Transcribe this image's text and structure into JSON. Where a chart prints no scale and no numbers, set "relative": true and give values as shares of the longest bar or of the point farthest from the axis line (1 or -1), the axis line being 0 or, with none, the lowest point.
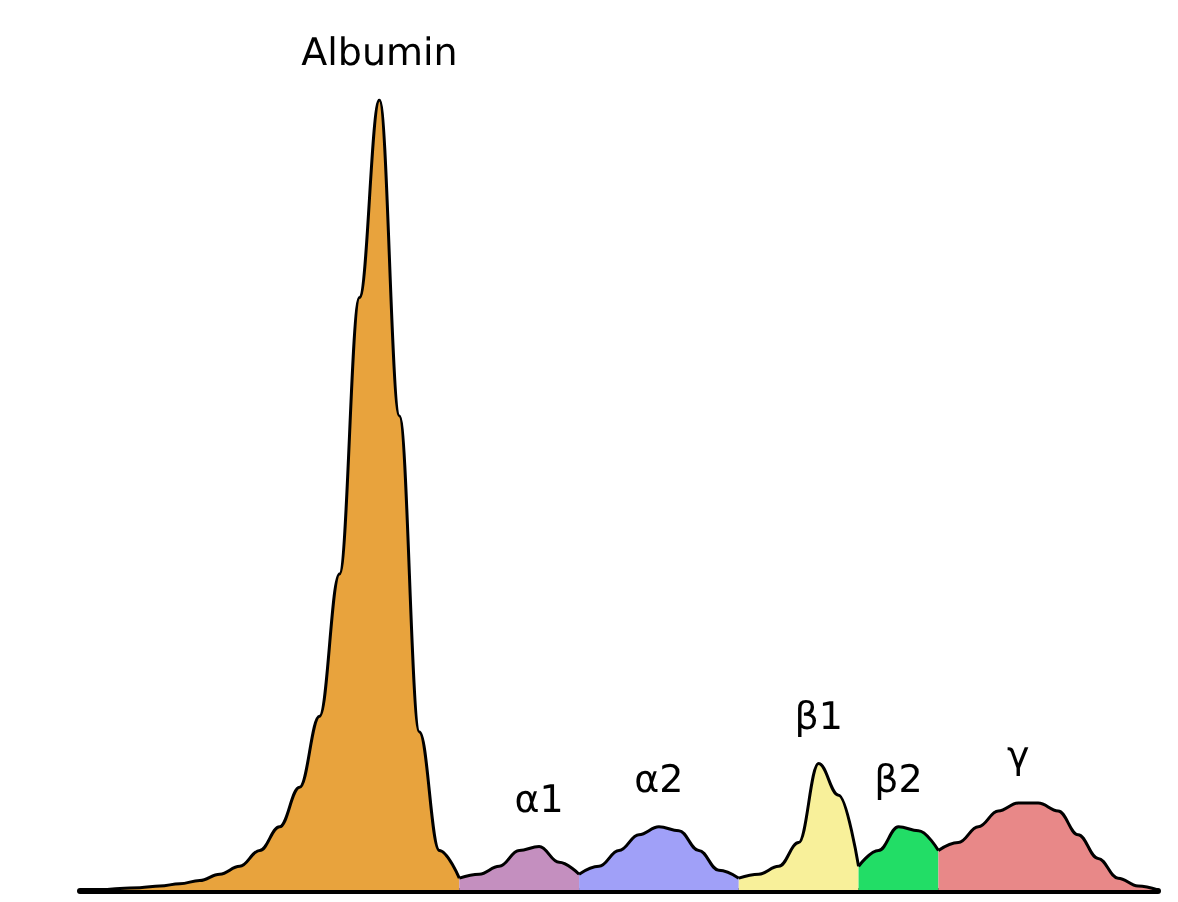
{
  "chart_data": {
    "type": "area",
    "relative": true,
    "categories": [
      null,
      null,
      null,
      null,
      null,
      null,
      null,
      null,
      null,
      null,
      null,
      null,
      null,
      null,
      null,
      null,
      null,
      null,
      null,
      null,
      null,
      null,
      null,
      null,
      null,
      null,
      null,
      null,
      null,
      null,
      null,
      null,
      null,
      null,
      null,
      null,
      null,
      null,
      null,
      null,
      null,
      null,
      null,
      null,
      null,
      null,
      null,
      null,
      null,
      null,
      null,
      null,
      null,
      null,
      null
    ],
    "series": [
      {
        "name": "Albumin",
        "color": "#e8a33d",
        "values": [
          0,
          0,
          0.002,
          0.003,
          0.005,
          0.008,
          0.012,
          0.02,
          0.03,
          0.05,
          0.08,
          0.13,
          0.22,
          0.4,
          0.75,
          1,
          0.6,
          0.2,
          0.05,
          0.015,
          null,
          null,
          null,
          null,
          null,
          null,
          null,
          null,
          null,
          null,
          null,
          null,
          null,
          null,
          null,
          null,
          null,
          null,
          null,
          null,
          null,
          null,
          null,
          null,
          null,
          null,
          null,
          null,
          null,
          null,
          null,
          null,
          null,
          null,
          null
        ]
      },
      {
        "name": "α1",
        "color": "#c48fbf",
        "values": [
          null,
          null,
          null,
          null,
          null,
          null,
          null,
          null,
          null,
          null,
          null,
          null,
          null,
          null,
          null,
          null,
          null,
          null,
          null,
          0.015,
          0.02,
          0.03,
          0.05,
          0.055,
          0.035,
          0.02,
          null,
          null,
          null,
          null,
          null,
          null,
          null,
          null,
          null,
          null,
          null,
          null,
          null,
          null,
          null,
          null,
          null,
          null,
          null,
          null,
          null,
          null,
          null,
          null,
          null,
          null,
          null,
          null,
          null
        ]
      },
      {
        "name": "α2",
        "color": "#a0a0f8",
        "values": [
          null,
          null,
          null,
          null,
          null,
          null,
          null,
          null,
          null,
          null,
          null,
          null,
          null,
          null,
          null,
          null,
          null,
          null,
          null,
          null,
          null,
          null,
          null,
          null,
          null,
          0.02,
          0.03,
          0.05,
          0.07,
          0.08,
          0.075,
          0.05,
          0.025,
          0.015,
          null,
          null,
          null,
          null,
          null,
          null,
          null,
          null,
          null,
          null,
          null,
          null,
          null,
          null,
          null,
          null,
          null,
          null,
          null,
          null,
          null
        ]
      },
      {
        "name": "β1",
        "color": "#f8f09a",
        "values": [
          null,
          null,
          null,
          null,
          null,
          null,
          null,
          null,
          null,
          null,
          null,
          null,
          null,
          null,
          null,
          null,
          null,
          null,
          null,
          null,
          null,
          null,
          null,
          null,
          null,
          null,
          null,
          null,
          null,
          null,
          null,
          null,
          null,
          0.015,
          0.02,
          0.03,
          0.06,
          0.16,
          0.12,
          0.03,
          null,
          null,
          null,
          null,
          null,
          null,
          null,
          null,
          null,
          null,
          null,
          null,
          null,
          null,
          null
        ]
      },
      {
        "name": "β2",
        "color": "#22dd66",
        "values": [
          null,
          null,
          null,
          null,
          null,
          null,
          null,
          null,
          null,
          null,
          null,
          null,
          null,
          null,
          null,
          null,
          null,
          null,
          null,
          null,
          null,
          null,
          null,
          null,
          null,
          null,
          null,
          null,
          null,
          null,
          null,
          null,
          null,
          null,
          null,
          null,
          null,
          null,
          null,
          0.03,
          0.05,
          0.08,
          0.075,
          0.05,
          null,
          null,
          null,
          null,
          null,
          null,
          null,
          null,
          null,
          null,
          null
        ]
      },
      {
        "name": "γ",
        "color": "#e88888",
        "values": [
          null,
          null,
          null,
          null,
          null,
          null,
          null,
          null,
          null,
          null,
          null,
          null,
          null,
          null,
          null,
          null,
          null,
          null,
          null,
          null,
          null,
          null,
          null,
          null,
          null,
          null,
          null,
          null,
          null,
          null,
          null,
          null,
          null,
          null,
          null,
          null,
          null,
          null,
          null,
          null,
          null,
          null,
          null,
          0.05,
          0.06,
          0.08,
          0.1,
          0.11,
          0.11,
          0.1,
          0.07,
          0.04,
          0.015,
          0.005,
          0
        ]
      }
    ]
  }
}
